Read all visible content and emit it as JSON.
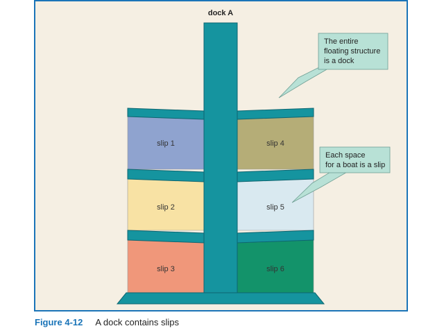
{
  "diagram": {
    "dock_label": "dock A",
    "slips": [
      {
        "label": "slip 1",
        "color": "#8fa3cf"
      },
      {
        "label": "slip 2",
        "color": "#f8e2a4"
      },
      {
        "label": "slip 3",
        "color": "#f0977a"
      },
      {
        "label": "slip 4",
        "color": "#b5ad77"
      },
      {
        "label": "slip 5",
        "color": "#d9e9f0"
      },
      {
        "label": "slip 6",
        "color": "#13936a"
      }
    ],
    "callouts": [
      {
        "lines": [
          "The entire",
          "floating structure",
          "is a dock"
        ]
      },
      {
        "lines": [
          "Each space",
          "for a boat is a slip"
        ]
      }
    ],
    "colors": {
      "background": "#f5efe3",
      "frame": "#1a74b8",
      "dock": "#15949f",
      "dock_outline": "#0d6570",
      "callout_fill": "#b8e1d6"
    }
  },
  "caption": {
    "figure_number": "Figure 4-12",
    "text": "A dock contains slips"
  }
}
